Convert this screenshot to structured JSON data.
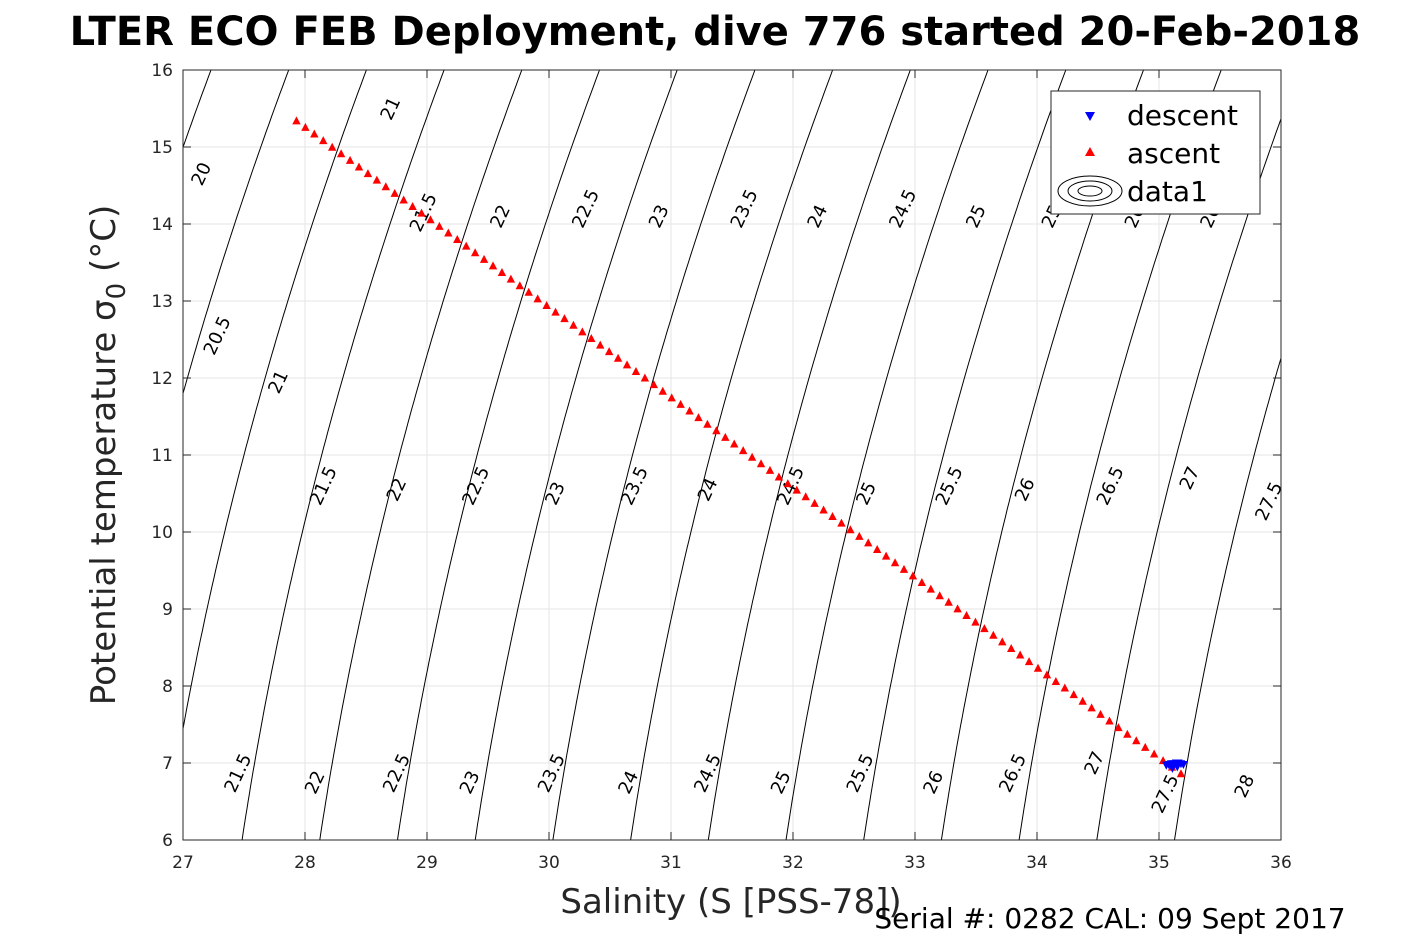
{
  "figure": {
    "title": "LTER ECO FEB Deployment, dive 776 started 20-Feb-2018",
    "footer": "Serial #: 0282  CAL: 09 Sept 2017"
  },
  "chart_data": {
    "type": "scatter",
    "title": "LTER ECO FEB Deployment, dive 776 started 20-Feb-2018",
    "xlabel": "Salinity (S [PSS-78])",
    "ylabel": "Potential temperature σ",
    "ylabel_subscript": "0",
    "ylabel_unit": " (°C)",
    "xlim": [
      27,
      36
    ],
    "ylim": [
      6,
      16
    ],
    "xticks": [
      27,
      28,
      29,
      30,
      31,
      32,
      33,
      34,
      35,
      36
    ],
    "yticks": [
      6,
      7,
      8,
      9,
      10,
      11,
      12,
      13,
      14,
      15,
      16
    ],
    "grid": true,
    "legend_position": "top-right",
    "legend": [
      "descent",
      "ascent",
      "data1"
    ],
    "colors": {
      "descent": "#0000ff",
      "ascent": "#ff0000",
      "contour": "#000000"
    },
    "series": [
      {
        "name": "descent",
        "marker": "triangle-down",
        "x": [
          35.06,
          35.08,
          35.1,
          35.12,
          35.14,
          35.16,
          35.18,
          35.2,
          35.11,
          35.15
        ],
        "y": [
          6.97,
          6.98,
          6.99,
          6.99,
          7.0,
          7.0,
          6.99,
          6.98,
          6.93,
          6.95
        ]
      },
      {
        "name": "ascent",
        "marker": "triangle-up",
        "start": [
          27.93,
          15.34
        ],
        "end": [
          35.18,
          6.86
        ],
        "count": 100
      }
    ],
    "contours": {
      "name": "data1",
      "levels": [
        20,
        20.5,
        21,
        21.5,
        22,
        22.5,
        23,
        23.5,
        24,
        24.5,
        25,
        25.5,
        26,
        26.5,
        27,
        27.5,
        28
      ],
      "labels": [
        {
          "text": "21",
          "s": 28.7,
          "t": 15.5
        },
        {
          "text": "20",
          "s": 27.15,
          "t": 14.65
        },
        {
          "text": "21.5",
          "s": 28.97,
          "t": 14.15
        },
        {
          "text": "22",
          "s": 29.6,
          "t": 14.1
        },
        {
          "text": "22.5",
          "s": 30.3,
          "t": 14.2
        },
        {
          "text": "23",
          "s": 30.9,
          "t": 14.1
        },
        {
          "text": "23.5",
          "s": 31.6,
          "t": 14.2
        },
        {
          "text": "24",
          "s": 32.2,
          "t": 14.1
        },
        {
          "text": "24.5",
          "s": 32.9,
          "t": 14.2
        },
        {
          "text": "25",
          "s": 33.5,
          "t": 14.1
        },
        {
          "text": "25.5",
          "s": 34.15,
          "t": 14.2
        },
        {
          "text": "26",
          "s": 34.8,
          "t": 14.1
        },
        {
          "text": "26.5",
          "s": 35.45,
          "t": 14.2
        },
        {
          "text": "20.5",
          "s": 27.28,
          "t": 12.55
        },
        {
          "text": "21",
          "s": 27.78,
          "t": 11.95
        },
        {
          "text": "21.5",
          "s": 28.15,
          "t": 10.6
        },
        {
          "text": "22",
          "s": 28.75,
          "t": 10.55
        },
        {
          "text": "22.5",
          "s": 29.4,
          "t": 10.6
        },
        {
          "text": "23",
          "s": 30.05,
          "t": 10.5
        },
        {
          "text": "23.5",
          "s": 30.7,
          "t": 10.6
        },
        {
          "text": "24",
          "s": 31.3,
          "t": 10.55
        },
        {
          "text": "24.5",
          "s": 31.98,
          "t": 10.6
        },
        {
          "text": "25",
          "s": 32.6,
          "t": 10.5
        },
        {
          "text": "25.5",
          "s": 33.28,
          "t": 10.6
        },
        {
          "text": "26",
          "s": 33.9,
          "t": 10.55
        },
        {
          "text": "26.5",
          "s": 34.6,
          "t": 10.6
        },
        {
          "text": "27",
          "s": 35.25,
          "t": 10.7
        },
        {
          "text": "27.5",
          "s": 35.9,
          "t": 10.4
        },
        {
          "text": "21.5",
          "s": 27.45,
          "t": 6.87
        },
        {
          "text": "22",
          "s": 28.08,
          "t": 6.75
        },
        {
          "text": "22.5",
          "s": 28.75,
          "t": 6.87
        },
        {
          "text": "23",
          "s": 29.35,
          "t": 6.75
        },
        {
          "text": "23.5",
          "s": 30.02,
          "t": 6.87
        },
        {
          "text": "24",
          "s": 30.65,
          "t": 6.75
        },
        {
          "text": "24.5",
          "s": 31.3,
          "t": 6.87
        },
        {
          "text": "25",
          "s": 31.9,
          "t": 6.75
        },
        {
          "text": "25.5",
          "s": 32.55,
          "t": 6.87
        },
        {
          "text": "26",
          "s": 33.15,
          "t": 6.75
        },
        {
          "text": "26.5",
          "s": 33.8,
          "t": 6.87
        },
        {
          "text": "27",
          "s": 34.47,
          "t": 7.0
        },
        {
          "text": "27.5",
          "s": 35.05,
          "t": 6.6
        },
        {
          "text": "28",
          "s": 35.7,
          "t": 6.7
        }
      ]
    }
  }
}
